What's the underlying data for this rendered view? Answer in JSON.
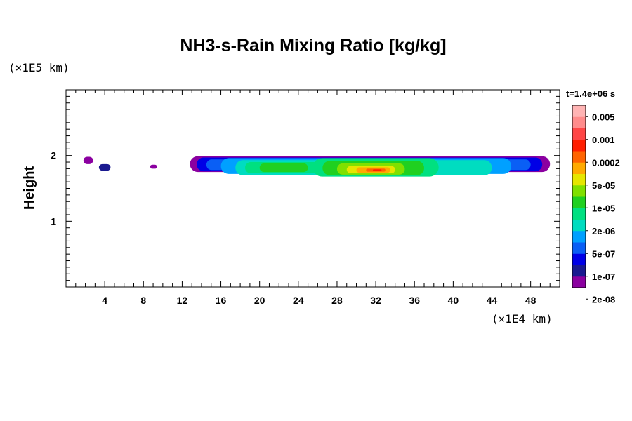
{
  "chart_data": {
    "type": "contour",
    "title": "NH3-s-Rain Mixing Ratio [kg/kg]",
    "ylabel": "Height",
    "x_unit": "(×1E4 km)",
    "y_unit": "(×1E5 km)",
    "xlim": [
      0,
      51
    ],
    "ylim": [
      0,
      3
    ],
    "x_ticks": [
      "4",
      "8",
      "12",
      "16",
      "20",
      "24",
      "28",
      "32",
      "36",
      "40",
      "44",
      "48"
    ],
    "y_ticks": [
      "1",
      "2"
    ],
    "time_label": "t=1.4e+06 s",
    "colorbar": {
      "labels": [
        "0.005",
        "0.001",
        "0.0002",
        "5e-05",
        "1e-05",
        "2e-06",
        "5e-07",
        "1e-07",
        "2e-08"
      ],
      "colors": [
        "#8b00a0",
        "#1a1a90",
        "#0000e6",
        "#0a5ff5",
        "#00a0ff",
        "#00dcc0",
        "#00e080",
        "#20d020",
        "#80e000",
        "#e6e600",
        "#ffaa00",
        "#ff6400",
        "#ff1e00",
        "#ff4646",
        "#ff8c8c",
        "#ffb4b4"
      ]
    },
    "contour_bands": [
      {
        "x": [
          1.8,
          2.8
        ],
        "y": [
          1.87,
          1.98
        ],
        "level": 0
      },
      {
        "x": [
          3.4,
          4.6
        ],
        "y": [
          1.77,
          1.87
        ],
        "level": 1
      },
      {
        "x": [
          8.7,
          9.4
        ],
        "y": [
          1.8,
          1.86
        ],
        "level": 0
      },
      {
        "x": [
          12.8,
          50.0
        ],
        "y": [
          1.75,
          1.99
        ],
        "level": 0
      },
      {
        "x": [
          13.5,
          49.2
        ],
        "y": [
          1.76,
          1.97
        ],
        "level": 2
      },
      {
        "x": [
          14.5,
          48.0
        ],
        "y": [
          1.78,
          1.94
        ],
        "level": 3
      },
      {
        "x": [
          16.0,
          46.0
        ],
        "y": [
          1.72,
          1.96
        ],
        "level": 4
      },
      {
        "x": [
          17.5,
          44.0
        ],
        "y": [
          1.7,
          1.93
        ],
        "level": 5
      },
      {
        "x": [
          18.5,
          30.0
        ],
        "y": [
          1.73,
          1.9
        ],
        "level": 6
      },
      {
        "x": [
          20.0,
          25.0
        ],
        "y": [
          1.75,
          1.88
        ],
        "level": 7
      },
      {
        "x": [
          25.5,
          38.5
        ],
        "y": [
          1.68,
          1.96
        ],
        "level": 6
      },
      {
        "x": [
          26.5,
          37.0
        ],
        "y": [
          1.7,
          1.92
        ],
        "level": 7
      },
      {
        "x": [
          28.0,
          35.0
        ],
        "y": [
          1.71,
          1.88
        ],
        "level": 8
      },
      {
        "x": [
          29.0,
          34.0
        ],
        "y": [
          1.73,
          1.84
        ],
        "level": 9
      },
      {
        "x": [
          30.0,
          33.5
        ],
        "y": [
          1.74,
          1.82
        ],
        "level": 10
      },
      {
        "x": [
          31.0,
          33.0
        ],
        "y": [
          1.755,
          1.8
        ],
        "level": 11
      },
      {
        "x": [
          31.7,
          32.6
        ],
        "y": [
          1.765,
          1.79
        ],
        "level": 12
      }
    ]
  }
}
